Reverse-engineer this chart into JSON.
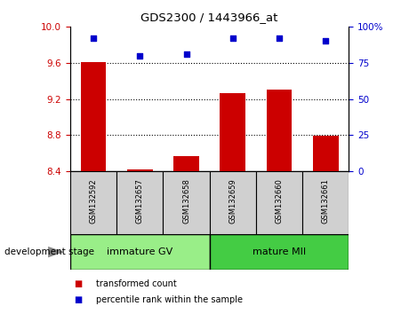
{
  "title": "GDS2300 / 1443966_at",
  "samples": [
    "GSM132592",
    "GSM132657",
    "GSM132658",
    "GSM132659",
    "GSM132660",
    "GSM132661"
  ],
  "transformed_counts": [
    9.61,
    8.42,
    8.57,
    9.26,
    9.3,
    8.79
  ],
  "percentile_ranks": [
    92,
    80,
    81,
    92,
    92,
    90
  ],
  "ylim_left": [
    8.4,
    10.0
  ],
  "ylim_right": [
    0,
    100
  ],
  "yticks_left": [
    8.4,
    8.8,
    9.2,
    9.6,
    10.0
  ],
  "yticks_right": [
    0,
    25,
    50,
    75,
    100
  ],
  "bar_color": "#cc0000",
  "dot_color": "#0000cc",
  "groups": [
    {
      "label": "immature GV",
      "indices": [
        0,
        1,
        2
      ],
      "color": "#99ee88"
    },
    {
      "label": "mature MII",
      "indices": [
        3,
        4,
        5
      ],
      "color": "#44cc44"
    }
  ],
  "group_label": "development stage",
  "legend_bar_label": "transformed count",
  "legend_dot_label": "percentile rank within the sample",
  "bar_baseline": 8.4,
  "sample_bg": "#d0d0d0",
  "plot_bg": "#ffffff",
  "grid_dotted_at": [
    8.8,
    9.2,
    9.6
  ]
}
